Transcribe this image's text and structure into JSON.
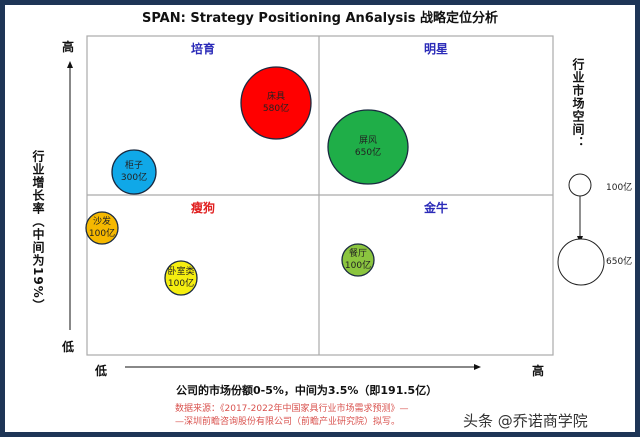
{
  "title": "SPAN: Strategy Positioning An6alysis 战略定位分析",
  "y_axis": {
    "label": "行业增长率（中间为19%）",
    "high": "高",
    "low": "低"
  },
  "x_axis": {
    "label": "公司的市场份额0-5%，中间为3.5%（即191.5亿）",
    "high": "高",
    "low": "低"
  },
  "quadrants": {
    "top_left": {
      "label": "培育",
      "color": "#2b2bb8"
    },
    "top_right": {
      "label": "明星",
      "color": "#2b2bb8"
    },
    "bottom_left": {
      "label": "瘦狗",
      "color": "#e02020"
    },
    "bottom_right": {
      "label": "金牛",
      "color": "#2b2bb8"
    }
  },
  "legend": {
    "title": "行业市场空间：",
    "small": "100亿",
    "large": "650亿"
  },
  "chart_data": {
    "type": "bubble",
    "bubbles": [
      {
        "name": "床具",
        "value": "580亿",
        "quadrant": "培育",
        "color": "#ff0000"
      },
      {
        "name": "柜子",
        "value": "300亿",
        "quadrant": "培育",
        "color": "#10a8e8"
      },
      {
        "name": "屏风",
        "value": "650亿",
        "quadrant": "明星",
        "color": "#1fae48"
      },
      {
        "name": "沙发",
        "value": "100亿",
        "quadrant": "瘦狗",
        "color": "#f5b800"
      },
      {
        "name": "卧室类",
        "value": "100亿",
        "quadrant": "瘦狗",
        "color": "#f5ee10"
      },
      {
        "name": "餐厅",
        "value": "100亿",
        "quadrant": "金牛",
        "color": "#8bc53f"
      }
    ]
  },
  "source": {
    "line1": "数据来源：《2017-2022年中国家具行业市场需求预测》—",
    "line2": "—深圳前瞻咨询股份有限公司（前瞻产业研究院）拟写。"
  },
  "watermark": "头条 @乔诺商学院"
}
